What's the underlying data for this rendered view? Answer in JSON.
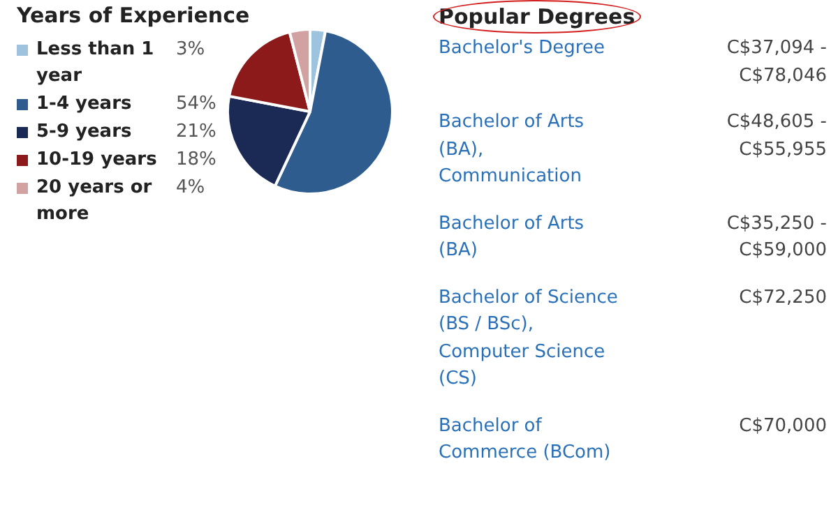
{
  "chart_data": [
    {
      "type": "pie",
      "title": "Years of Experience",
      "categories": [
        "Less than 1 year",
        "1-4 years",
        "5-9 years",
        "10-19 years",
        "20 years or more"
      ],
      "values": [
        3,
        54,
        21,
        18,
        4
      ],
      "colors": [
        "#9dc3de",
        "#2e5c8f",
        "#1b2a55",
        "#8c1a1a",
        "#d2a1a1"
      ],
      "value_labels": [
        "3%",
        "54%",
        "21%",
        "18%",
        "4%"
      ],
      "legend": "left"
    },
    {
      "type": "other",
      "title": "Popular Degrees",
      "annotations": [
        "Bachelor's Degree",
        "C$37,094 - C$78,046",
        "Bachelor of Arts (BA), Communication",
        "C$48,605 - C$55,955",
        "Bachelor of Arts (BA)",
        "C$35,250 - C$59,000",
        "Bachelor of Science (BS / BSc), Computer Science (CS)",
        "C$72,250",
        "Bachelor of Commerce (BCom)",
        "C$70,000"
      ]
    }
  ]
}
